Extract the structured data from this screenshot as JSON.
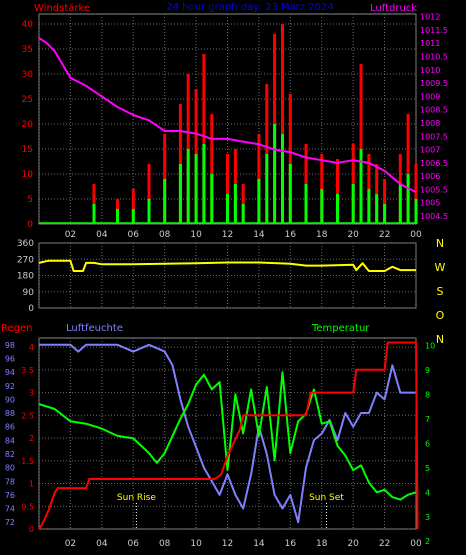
{
  "chart_data": [
    {
      "type": "bar",
      "title": "24 hour graph day: 23 März 2024",
      "left_label": "Windstärke",
      "right_label": "Luftdruck",
      "x_ticks": [
        "02",
        "04",
        "06",
        "08",
        "10",
        "12",
        "14",
        "16",
        "18",
        "20",
        "22",
        "00"
      ],
      "y_left_ticks": [
        "0",
        "5",
        "10",
        "15",
        "20",
        "25",
        "30",
        "35",
        "40"
      ],
      "y_left_range": [
        0,
        42
      ],
      "y_right_ticks": [
        "1004.5",
        "1005",
        "1005.5",
        "1006",
        "1006.5",
        "1007",
        "1007.5",
        "1008",
        "1008.5",
        "1009",
        "1009.5",
        "1010",
        "1010.5",
        "1011",
        "1011.5",
        "1012"
      ],
      "y_right_range": [
        1004.2,
        1012.1
      ],
      "series": [
        {
          "name": "gust",
          "color": "#ff0000",
          "x": [
            0,
            1,
            2,
            3,
            3.5,
            4,
            4.5,
            5,
            6,
            7,
            8,
            9,
            9.5,
            10,
            10.5,
            11,
            12,
            12.5,
            13,
            14,
            14.5,
            15,
            15.5,
            16,
            17,
            18,
            19,
            20,
            20.5,
            21,
            21.5,
            22,
            23,
            23.5,
            24
          ],
          "values": [
            0,
            0,
            0,
            0,
            8,
            0,
            0,
            5,
            7,
            12,
            18,
            24,
            30,
            27,
            34,
            22,
            14,
            15,
            8,
            18,
            28,
            38,
            40,
            26,
            16,
            14,
            13,
            16,
            32,
            14,
            12,
            9,
            14,
            22,
            12
          ]
        },
        {
          "name": "average",
          "color": "#00ff00",
          "x": [
            0,
            1,
            2,
            3,
            3.5,
            4,
            4.5,
            5,
            6,
            7,
            8,
            9,
            9.5,
            10,
            10.5,
            11,
            12,
            12.5,
            13,
            14,
            14.5,
            15,
            15.5,
            16,
            17,
            18,
            19,
            20,
            20.5,
            21,
            21.5,
            22,
            23,
            23.5,
            24
          ],
          "values": [
            0,
            0,
            0,
            0,
            4,
            0,
            0,
            3,
            3,
            5,
            9,
            12,
            15,
            14,
            16,
            10,
            6,
            8,
            4,
            9,
            14,
            20,
            18,
            12,
            8,
            7,
            6,
            8,
            15,
            7,
            6,
            4,
            8,
            10,
            5
          ]
        },
        {
          "name": "pressure",
          "color": "#ff00ff",
          "axis": "right",
          "x": [
            0,
            0.5,
            1,
            1.5,
            2,
            3,
            4,
            5,
            6,
            7,
            8,
            9,
            10,
            11,
            12,
            13,
            14,
            15,
            16,
            17,
            18,
            19,
            20,
            21,
            22,
            23,
            24
          ],
          "values": [
            1011.2,
            1011.0,
            1010.7,
            1010.2,
            1009.7,
            1009.4,
            1009.0,
            1008.6,
            1008.3,
            1008.1,
            1007.7,
            1007.7,
            1007.6,
            1007.4,
            1007.4,
            1007.3,
            1007.2,
            1007.0,
            1006.9,
            1006.7,
            1006.6,
            1006.5,
            1006.6,
            1006.5,
            1006.2,
            1005.7,
            1005.4
          ]
        }
      ]
    },
    {
      "type": "line",
      "y_ticks": [
        "0",
        "90",
        "180",
        "270",
        "360"
      ],
      "y_range": [
        0,
        360
      ],
      "right_letters": [
        "N",
        "W",
        "S",
        "O",
        "N"
      ],
      "series": [
        {
          "name": "direction",
          "color": "#ffff00",
          "x": [
            0,
            0.6,
            1.2,
            2,
            2.2,
            2.8,
            3,
            3.5,
            4,
            6,
            8,
            10,
            12,
            14,
            16,
            17,
            18,
            20,
            20.2,
            20.6,
            21,
            22,
            22.5,
            23,
            24
          ],
          "values": [
            250,
            262,
            262,
            262,
            205,
            205,
            250,
            250,
            242,
            242,
            245,
            248,
            252,
            252,
            245,
            235,
            235,
            240,
            210,
            248,
            205,
            205,
            228,
            210,
            210
          ]
        }
      ]
    },
    {
      "type": "line",
      "left_label": "Regen",
      "left2_label": "Luftfeuchte",
      "right_label": "Temperatur",
      "sunrise_label": "Sun Rise",
      "sunset_label": "Sun Set",
      "sunrise_x": 6.2,
      "sunset_x": 18.3,
      "y_rain_ticks": [
        "0",
        "0.5",
        "1",
        "1.5",
        "2",
        "2.5",
        "3",
        "3.5",
        "4"
      ],
      "y_rain_range": [
        0,
        4.2
      ],
      "y_humidity_ticks": [
        "72",
        "74",
        "76",
        "78",
        "80",
        "82",
        "84",
        "86",
        "88",
        "90",
        "92",
        "94",
        "96",
        "98"
      ],
      "y_humidity_range": [
        71,
        99
      ],
      "y_temp_ticks": [
        "2",
        "3",
        "4",
        "5",
        "6",
        "7",
        "8",
        "9",
        "10"
      ],
      "y_temp_range": [
        2.5,
        10.3
      ],
      "series": [
        {
          "name": "rain",
          "color": "#ff0000",
          "axis": "rain",
          "x": [
            0,
            0.2,
            0.4,
            0.6,
            0.8,
            1,
            1.2,
            3,
            3.2,
            11,
            11.2,
            11.6,
            12,
            12.4,
            12.8,
            13,
            17,
            17.3,
            20,
            20.2,
            22,
            22.2,
            24,
            24.1
          ],
          "values": [
            0,
            0.1,
            0.25,
            0.4,
            0.6,
            0.8,
            0.9,
            0.9,
            1.1,
            1.1,
            1.1,
            1.2,
            1.6,
            1.9,
            2.2,
            2.5,
            2.5,
            3.0,
            3.0,
            3.5,
            3.5,
            4.1,
            4.1,
            0.0
          ]
        },
        {
          "name": "humidity",
          "color": "#8080ff",
          "axis": "humidity",
          "x": [
            0,
            1,
            2,
            2.5,
            3,
            4,
            5,
            6,
            7,
            8,
            8.5,
            9,
            9.5,
            10,
            10.5,
            11,
            11.5,
            12,
            12.5,
            13,
            13.5,
            14,
            14.5,
            15,
            15.5,
            16,
            16.5,
            17,
            17.5,
            18,
            18.5,
            19,
            19.5,
            20,
            20.5,
            21,
            21.5,
            22,
            22.5,
            23,
            23.5,
            24
          ],
          "values": [
            98,
            98,
            98,
            97,
            98,
            98,
            98,
            97,
            98,
            97,
            95,
            90,
            86,
            83,
            80,
            78,
            76,
            79,
            76,
            74,
            79,
            86,
            82,
            76,
            74,
            76,
            72,
            80,
            84,
            85,
            87,
            84,
            88,
            86,
            88,
            88,
            91,
            90,
            95,
            91,
            91,
            91
          ]
        },
        {
          "name": "temperature",
          "color": "#00ff00",
          "axis": "temp",
          "x": [
            0,
            1,
            2,
            3,
            4,
            5,
            6,
            7,
            7.5,
            8,
            8.5,
            9,
            9.5,
            10,
            10.5,
            11,
            11.5,
            12,
            12.5,
            13,
            13.5,
            14,
            14.5,
            15,
            15.5,
            16,
            16.5,
            17,
            17.5,
            18,
            18.5,
            19,
            19.5,
            20,
            20.5,
            21,
            21.5,
            22,
            22.5,
            23,
            23.5,
            24
          ],
          "values": [
            7.6,
            7.4,
            6.9,
            6.8,
            6.6,
            6.3,
            6.2,
            5.6,
            5.2,
            5.6,
            6.3,
            7.0,
            7.6,
            8.4,
            8.8,
            8.2,
            8.5,
            4.9,
            8.0,
            6.4,
            8.2,
            6.3,
            8.3,
            5.3,
            8.9,
            5.6,
            6.9,
            7.2,
            8.2,
            6.8,
            6.9,
            5.9,
            5.5,
            4.9,
            5.1,
            4.4,
            4.0,
            4.1,
            3.8,
            3.7,
            3.9,
            4.0
          ]
        }
      ]
    }
  ]
}
